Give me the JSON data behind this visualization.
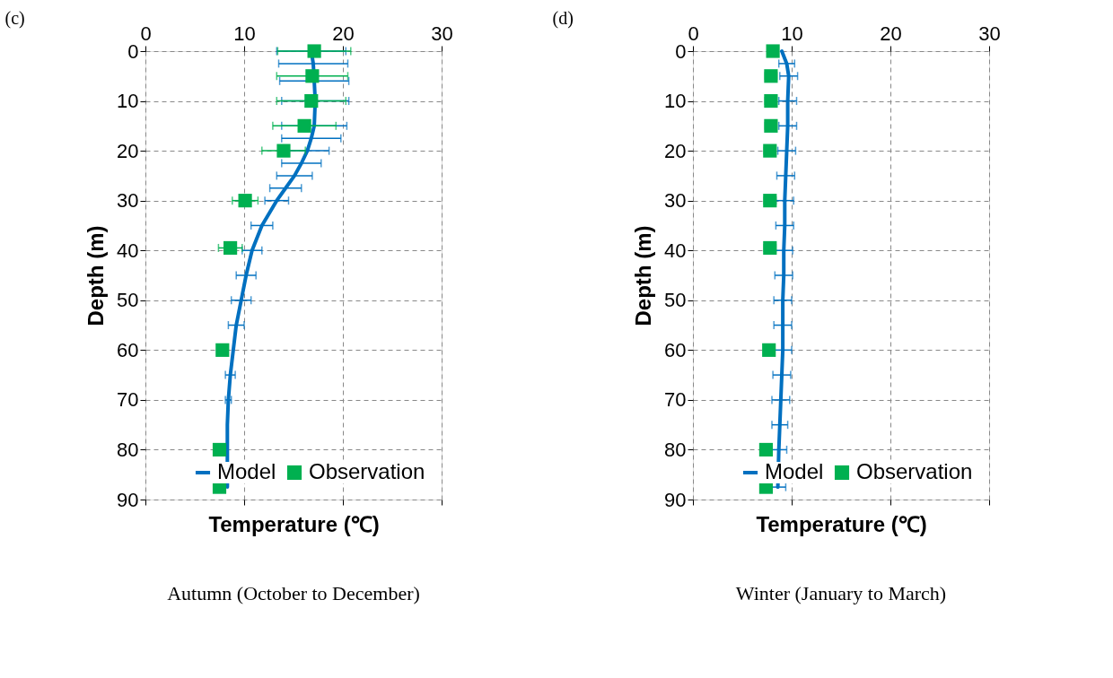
{
  "chart_data": [
    {
      "type": "line",
      "title": "(c)",
      "orientation": "horizontal",
      "xlabel": "Temperature (℃)",
      "ylabel": "Depth (m)",
      "xlim": [
        0,
        30
      ],
      "xticks": [
        0,
        10,
        20,
        30
      ],
      "ylim": [
        90,
        0
      ],
      "yticks": [
        0,
        10,
        20,
        30,
        40,
        50,
        60,
        70,
        80,
        90
      ],
      "grid": true,
      "legend": "bottom right",
      "annotations": [
        "Autumn (October to December)"
      ],
      "series": [
        {
          "name": "Model",
          "color": "#0070c0",
          "marker": "none",
          "line_style": "solid",
          "x": [
            0,
            2.5,
            6,
            10,
            15,
            17.5,
            20,
            22.5,
            25,
            27.5,
            30,
            35,
            40,
            45,
            50,
            55,
            60,
            65,
            70,
            75,
            80,
            87.5
          ],
          "values": [
            16.8,
            17.0,
            17.1,
            17.2,
            17.1,
            16.8,
            16.4,
            15.8,
            15.1,
            14.2,
            13.3,
            11.8,
            10.8,
            10.2,
            9.7,
            9.2,
            8.9,
            8.6,
            8.4,
            8.3,
            8.3,
            8.3
          ],
          "errors": [
            3.5,
            3.5,
            3.5,
            3.4,
            3.3,
            3.0,
            2.2,
            2.0,
            1.8,
            1.6,
            1.2,
            1.1,
            1.0,
            1.0,
            1.0,
            0.8,
            null,
            0.5,
            0.3,
            null,
            null,
            null
          ]
        },
        {
          "name": "Observation",
          "type": "scatter",
          "color": "#00b050",
          "marker": "square",
          "x": [
            0,
            5,
            10,
            15,
            20,
            30,
            39.5,
            60,
            80,
            87.5
          ],
          "values": [
            17.1,
            16.9,
            16.8,
            16.1,
            14.0,
            10.1,
            8.6,
            7.8,
            7.5,
            7.5
          ],
          "errors": [
            3.7,
            3.6,
            3.5,
            3.2,
            2.2,
            1.3,
            1.2,
            null,
            null,
            null
          ]
        }
      ]
    },
    {
      "type": "line",
      "title": "(d)",
      "orientation": "horizontal",
      "xlabel": "Temperature (℃)",
      "ylabel": "Depth (m)",
      "xlim": [
        0,
        30
      ],
      "xticks": [
        0,
        10,
        20,
        30
      ],
      "ylim": [
        90,
        0
      ],
      "yticks": [
        0,
        10,
        20,
        30,
        40,
        50,
        60,
        70,
        80,
        90
      ],
      "grid": true,
      "legend": "bottom right",
      "annotations": [
        "Winter (January to March)"
      ],
      "series": [
        {
          "name": "Model",
          "color": "#0070c0",
          "marker": "none",
          "line_style": "solid",
          "x": [
            0,
            2.5,
            5,
            10,
            15,
            20,
            25,
            30,
            35,
            40,
            45,
            50,
            55,
            60,
            65,
            70,
            75,
            80,
            87.5
          ],
          "values": [
            9.0,
            9.5,
            9.7,
            9.6,
            9.6,
            9.5,
            9.4,
            9.3,
            9.3,
            9.2,
            9.2,
            9.1,
            9.1,
            9.1,
            9.0,
            8.9,
            8.8,
            8.7,
            8.6
          ],
          "errors": [
            null,
            0.8,
            0.9,
            0.9,
            0.9,
            0.9,
            0.9,
            0.9,
            0.9,
            0.9,
            0.9,
            0.9,
            0.9,
            0.9,
            0.9,
            0.9,
            0.8,
            0.8,
            0.8
          ]
        },
        {
          "name": "Observation",
          "type": "scatter",
          "color": "#00b050",
          "marker": "square",
          "x": [
            0,
            5,
            10,
            15,
            20,
            30,
            39.5,
            60,
            80,
            87.5
          ],
          "values": [
            8.1,
            7.9,
            7.9,
            7.9,
            7.8,
            7.8,
            7.8,
            7.7,
            7.4,
            7.4
          ],
          "errors": [
            null,
            0.6,
            0.6,
            0.6,
            0.6,
            0.6,
            0.6,
            null,
            null,
            null
          ]
        }
      ]
    }
  ]
}
